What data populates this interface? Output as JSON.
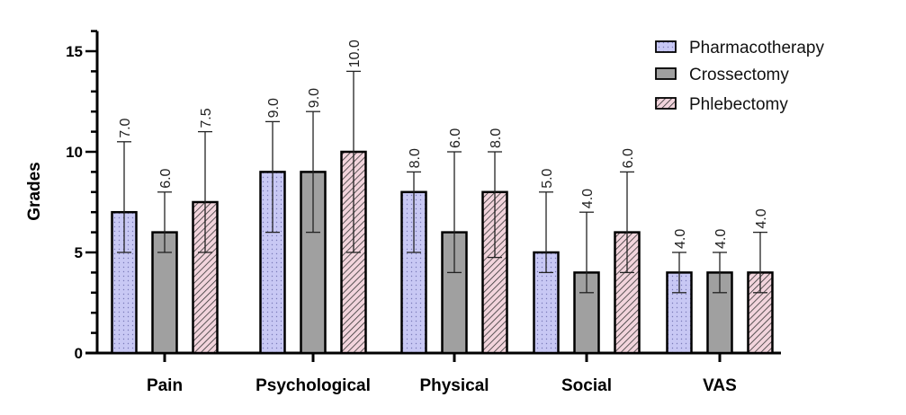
{
  "chart_data": {
    "type": "bar",
    "title": "",
    "xlabel": "",
    "ylabel": "Grades",
    "ylim": [
      0,
      16
    ],
    "yticks": [
      0,
      5,
      10,
      15
    ],
    "grid": false,
    "legend_position": "top-right",
    "categories": [
      "Pain",
      "Psychological",
      "Physical",
      "Social",
      "VAS"
    ],
    "series": [
      {
        "name": "Pharmacotherapy",
        "color": "#c8c8f4",
        "pattern": "dots",
        "values": [
          7.0,
          9.0,
          8.0,
          5.0,
          4.0
        ],
        "labels": [
          "7.0",
          "9.0",
          "8.0",
          "5.0",
          "4.0"
        ],
        "err_low": [
          5,
          6,
          5,
          4,
          3
        ],
        "err_high": [
          10.5,
          11.5,
          9,
          8,
          5
        ]
      },
      {
        "name": "Crossectomy",
        "color": "#a0a0a0",
        "pattern": "solid",
        "values": [
          6.0,
          9.0,
          6.0,
          4.0,
          4.0
        ],
        "labels": [
          "6.0",
          "9.0",
          "6.0",
          "4.0",
          "4.0"
        ],
        "err_low": [
          5,
          6,
          4,
          3,
          3
        ],
        "err_high": [
          8,
          12,
          10,
          7,
          5
        ]
      },
      {
        "name": "Phlebectomy",
        "color": "#f2d4dc",
        "pattern": "hatch",
        "values": [
          7.5,
          10.0,
          8.0,
          6.0,
          4.0
        ],
        "labels": [
          "7.5",
          "10.0",
          "8.0",
          "6.0",
          "4.0"
        ],
        "err_low": [
          5,
          5,
          4.75,
          4,
          3
        ],
        "err_high": [
          11,
          14,
          10,
          9,
          6
        ]
      }
    ]
  }
}
